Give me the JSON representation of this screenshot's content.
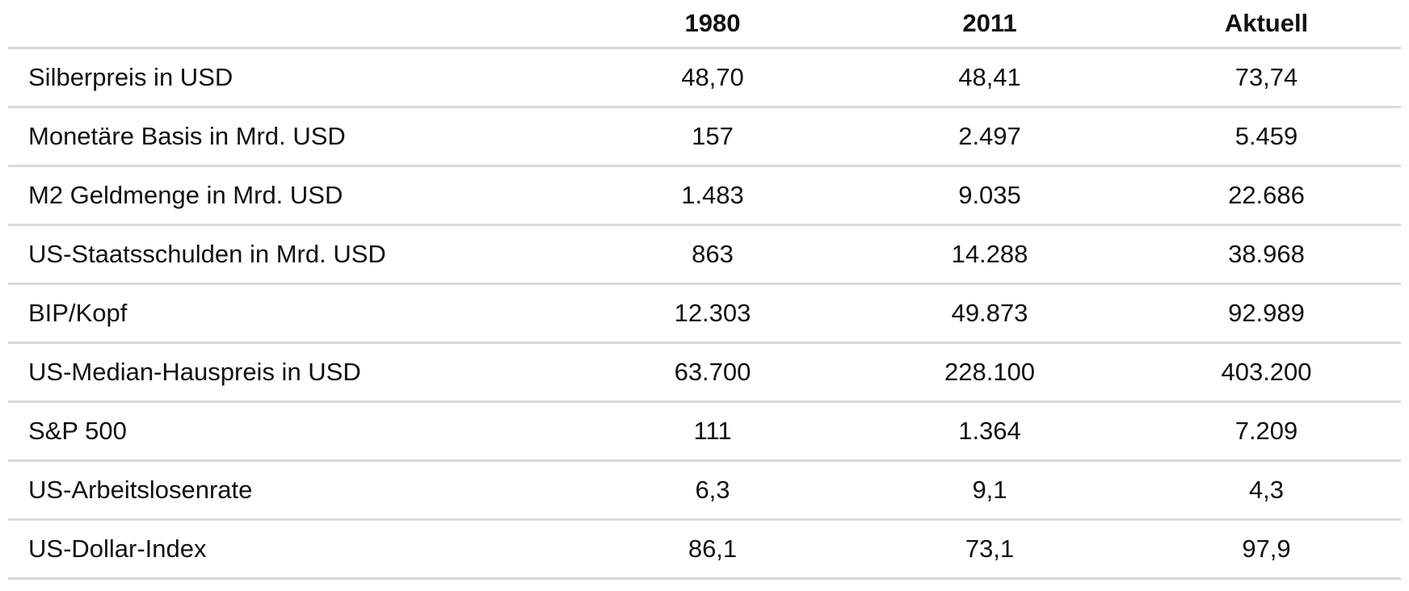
{
  "table": {
    "headers": [
      "",
      "1980",
      "2011",
      "Aktuell"
    ],
    "rows": [
      {
        "label": "Silberpreis in USD",
        "v1980": "48,70",
        "v2011": "48,41",
        "current": "73,74"
      },
      {
        "label": "Monetäre Basis in Mrd. USD",
        "v1980": "157",
        "v2011": "2.497",
        "current": "5.459"
      },
      {
        "label": "M2 Geldmenge in Mrd. USD",
        "v1980": "1.483",
        "v2011": "9.035",
        "current": "22.686"
      },
      {
        "label": "US-Staatsschulden in Mrd. USD",
        "v1980": "863",
        "v2011": "14.288",
        "current": "38.968"
      },
      {
        "label": "BIP/Kopf",
        "v1980": "12.303",
        "v2011": "49.873",
        "current": "92.989"
      },
      {
        "label": "US-Median-Hauspreis in USD",
        "v1980": "63.700",
        "v2011": "228.100",
        "current": "403.200"
      },
      {
        "label": "S&P 500",
        "v1980": "111",
        "v2011": "1.364",
        "current": "7.209"
      },
      {
        "label": "US-Arbeitslosenrate",
        "v1980": "6,3",
        "v2011": "9,1",
        "current": "4,3"
      },
      {
        "label": "US-Dollar-Index",
        "v1980": "86,1",
        "v2011": "73,1",
        "current": "97,9"
      }
    ]
  },
  "colors": {
    "text": "#111111",
    "rule": "#d9d9d9",
    "background": "#ffffff"
  }
}
